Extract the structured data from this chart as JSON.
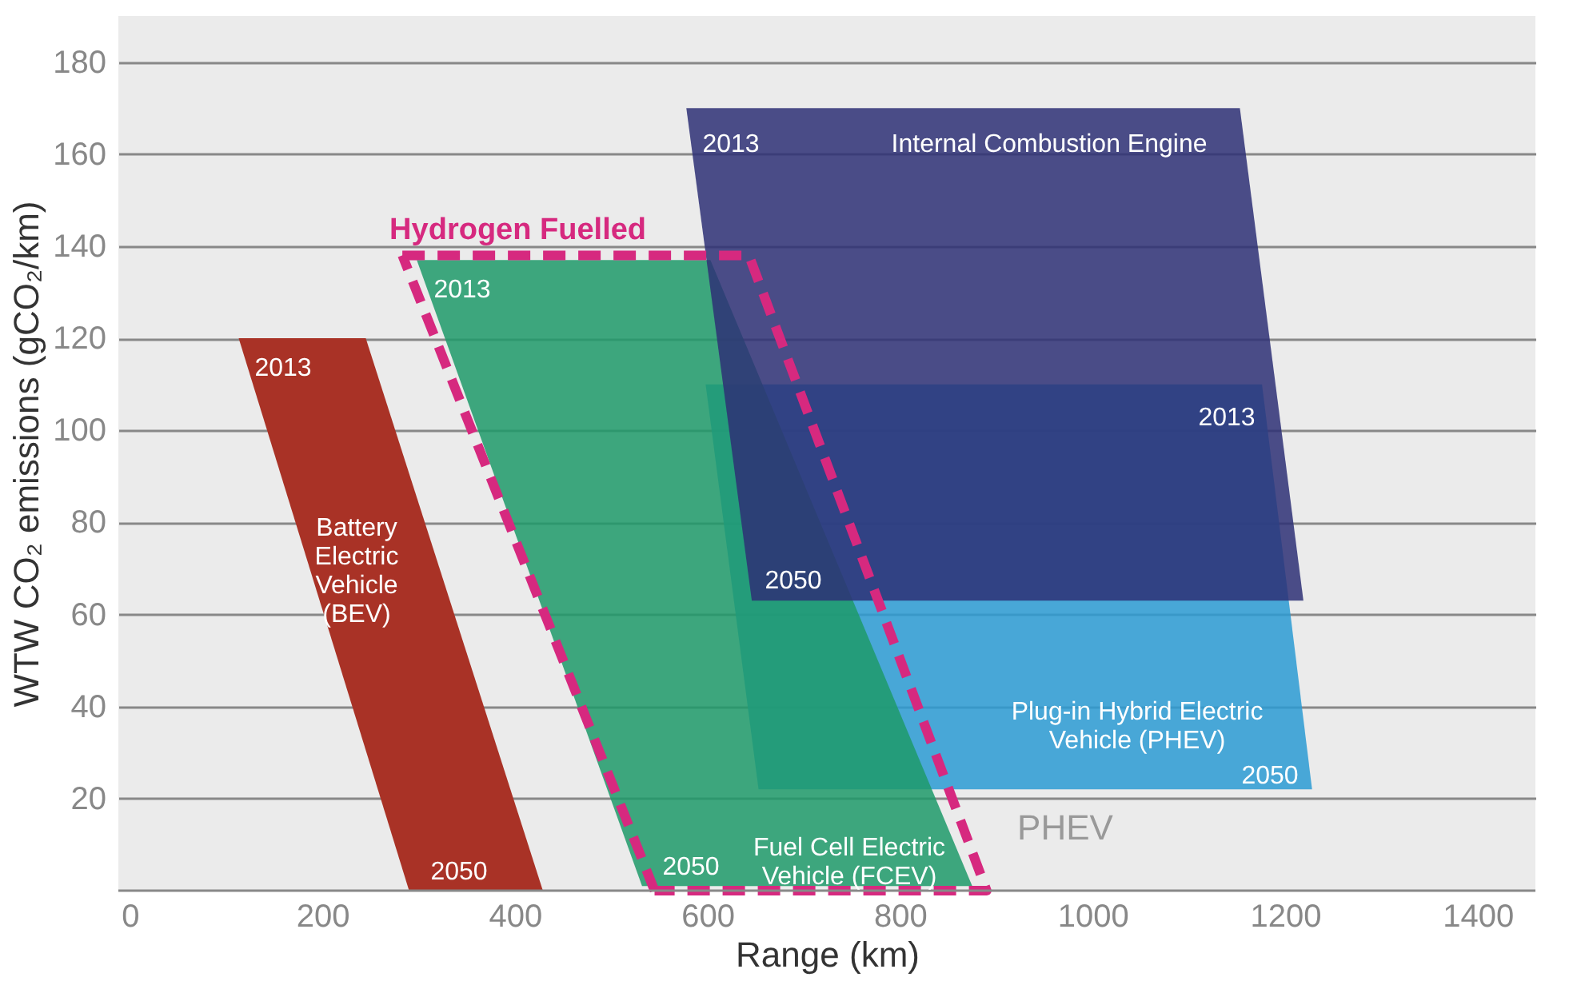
{
  "chart_data": {
    "type": "area",
    "xlabel": "Range (km)",
    "ylabel": "WTW CO₂ emissions (gCO₂/km)",
    "xlim": [
      -12,
      1460
    ],
    "ylim": [
      0,
      190
    ],
    "xticks": [
      0,
      200,
      400,
      600,
      800,
      1000,
      1200,
      1400
    ],
    "yticks": [
      20,
      40,
      60,
      80,
      100,
      120,
      140,
      160,
      180
    ],
    "grid": "y",
    "series": [
      {
        "color": "#a93226",
        "x": [
          113,
          245,
          429,
          290
        ],
        "values": [
          120,
          120,
          0,
          0
        ]
      },
      {
        "color": "#2b9bd4",
        "x": [
          598,
          1176,
          1228,
          653
        ],
        "values": [
          110,
          110,
          22,
          22
        ]
      },
      {
        "color": "#1f9a6a",
        "x": [
          298,
          603,
          875,
          532
        ],
        "values": [
          137,
          137,
          1,
          1
        ]
      },
      {
        "color": "#2e3075",
        "x": [
          578,
          1153,
          1219,
          646
        ],
        "values": [
          170,
          170,
          63,
          63
        ]
      },
      {
        "type": "line",
        "name": "Hydrogen Fuelled",
        "color": "#d6297f",
        "line_style": "dashed",
        "x": [
          283,
          643,
          890,
          545
        ],
        "values": [
          138,
          138,
          0,
          0
        ]
      }
    ],
    "annotations": [
      "2013",
      "Battery\nElectric\nVehicle\n(BEV)",
      "2050",
      "2013",
      "Fuel Cell Electric\nVehicle (FCEV)",
      "2050",
      "2013",
      "Internal Combustion Engine",
      "2013",
      "2050",
      "Plug-in Hybrid Electric\nVehicle (PHEV)",
      "2050",
      "PHEV"
    ]
  }
}
